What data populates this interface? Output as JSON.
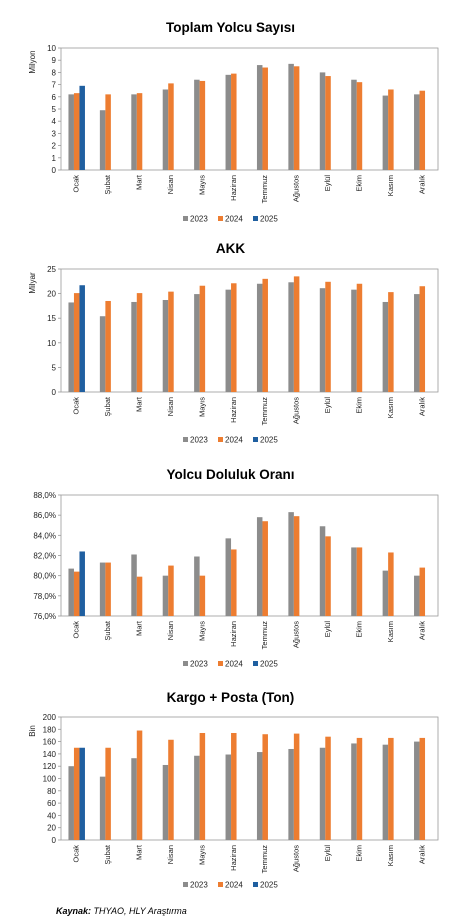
{
  "colors": {
    "y2023": "#8c8c8c",
    "y2024": "#ed7d31",
    "y2025": "#1f5fa0"
  },
  "source": {
    "label": "Kaynak:",
    "text": "THYAO, HLY Araştırma"
  },
  "chart_data": [
    {
      "type": "bar",
      "title": "Toplam Yolcu Sayısı",
      "ylabel": "Milyon",
      "ylim": [
        0,
        10
      ],
      "yticks": [
        0,
        1,
        2,
        3,
        4,
        5,
        6,
        7,
        8,
        9,
        10
      ],
      "ytick_labels": [
        "0",
        "1",
        "2",
        "3",
        "4",
        "5",
        "6",
        "7",
        "8",
        "9",
        "10"
      ],
      "categories": [
        "Ocak",
        "Şubat",
        "Mart",
        "Nisan",
        "Mayıs",
        "Haziran",
        "Temmuz",
        "Ağustos",
        "Eylül",
        "Ekim",
        "Kasım",
        "Aralık"
      ],
      "series": [
        {
          "name": "2023",
          "values": [
            6.2,
            4.9,
            6.2,
            6.6,
            7.4,
            7.8,
            8.6,
            8.7,
            8.0,
            7.4,
            6.1,
            6.2
          ]
        },
        {
          "name": "2024",
          "values": [
            6.3,
            6.2,
            6.3,
            7.1,
            7.3,
            7.9,
            8.4,
            8.5,
            7.7,
            7.2,
            6.6,
            6.5
          ]
        },
        {
          "name": "2025",
          "values": [
            6.9,
            null,
            null,
            null,
            null,
            null,
            null,
            null,
            null,
            null,
            null,
            null
          ]
        }
      ],
      "legend": "bottom"
    },
    {
      "type": "bar",
      "title": "AKK",
      "ylabel": "Milyar",
      "ylim": [
        0,
        25
      ],
      "yticks": [
        0,
        5,
        10,
        15,
        20,
        25
      ],
      "ytick_labels": [
        "0",
        "5",
        "10",
        "15",
        "20",
        "25"
      ],
      "categories": [
        "Ocak",
        "Şubat",
        "Mart",
        "Nisan",
        "Mayıs",
        "Haziran",
        "Temmuz",
        "Ağustos",
        "Eylül",
        "Ekim",
        "Kasım",
        "Aralık"
      ],
      "series": [
        {
          "name": "2023",
          "values": [
            18.2,
            15.4,
            18.3,
            18.7,
            19.9,
            20.8,
            22.0,
            22.3,
            21.1,
            20.8,
            18.3,
            19.9
          ]
        },
        {
          "name": "2024",
          "values": [
            20.1,
            18.5,
            20.1,
            20.4,
            21.6,
            22.1,
            23.0,
            23.5,
            22.4,
            22.0,
            20.3,
            21.5
          ]
        },
        {
          "name": "2025",
          "values": [
            21.7,
            null,
            null,
            null,
            null,
            null,
            null,
            null,
            null,
            null,
            null,
            null
          ]
        }
      ],
      "legend": "bottom"
    },
    {
      "type": "bar",
      "title": "Yolcu Doluluk Oranı",
      "ylabel": "",
      "ylim": [
        76,
        88
      ],
      "yticks": [
        76,
        78,
        80,
        82,
        84,
        86,
        88
      ],
      "ytick_labels": [
        "76,0%",
        "78,0%",
        "80,0%",
        "82,0%",
        "84,0%",
        "86,0%",
        "88,0%"
      ],
      "categories": [
        "Ocak",
        "Şubat",
        "Mart",
        "Nisan",
        "Mayıs",
        "Haziran",
        "Temmuz",
        "Ağustos",
        "Eylül",
        "Ekim",
        "Kasım",
        "Aralık"
      ],
      "series": [
        {
          "name": "2023",
          "values": [
            80.7,
            81.3,
            82.1,
            80.0,
            81.9,
            83.7,
            85.8,
            86.3,
            84.9,
            82.8,
            80.5,
            80.0
          ]
        },
        {
          "name": "2024",
          "values": [
            80.4,
            81.3,
            79.9,
            81.0,
            80.0,
            82.6,
            85.4,
            85.9,
            83.9,
            82.8,
            82.3,
            80.8
          ]
        },
        {
          "name": "2025",
          "values": [
            82.4,
            null,
            null,
            null,
            null,
            null,
            null,
            null,
            null,
            null,
            null,
            null
          ]
        }
      ],
      "legend": "bottom"
    },
    {
      "type": "bar",
      "title": "Kargo + Posta (Ton)",
      "ylabel": "Bin",
      "ylim": [
        0,
        200
      ],
      "yticks": [
        0,
        20,
        40,
        60,
        80,
        100,
        120,
        140,
        160,
        180,
        200
      ],
      "ytick_labels": [
        "0",
        "20",
        "40",
        "60",
        "80",
        "100",
        "120",
        "140",
        "160",
        "180",
        "200"
      ],
      "categories": [
        "Ocak",
        "Şubat",
        "Mart",
        "Nisan",
        "Mayıs",
        "Haziran",
        "Temmuz",
        "Ağustos",
        "Eylül",
        "Ekim",
        "Kasım",
        "Aralık"
      ],
      "series": [
        {
          "name": "2023",
          "values": [
            120,
            103,
            133,
            122,
            137,
            139,
            143,
            148,
            150,
            157,
            155,
            160
          ]
        },
        {
          "name": "2024",
          "values": [
            150,
            150,
            178,
            163,
            174,
            174,
            172,
            173,
            168,
            166,
            166,
            166
          ]
        },
        {
          "name": "2025",
          "values": [
            150,
            null,
            null,
            null,
            null,
            null,
            null,
            null,
            null,
            null,
            null,
            null
          ]
        }
      ],
      "legend": "bottom"
    }
  ]
}
